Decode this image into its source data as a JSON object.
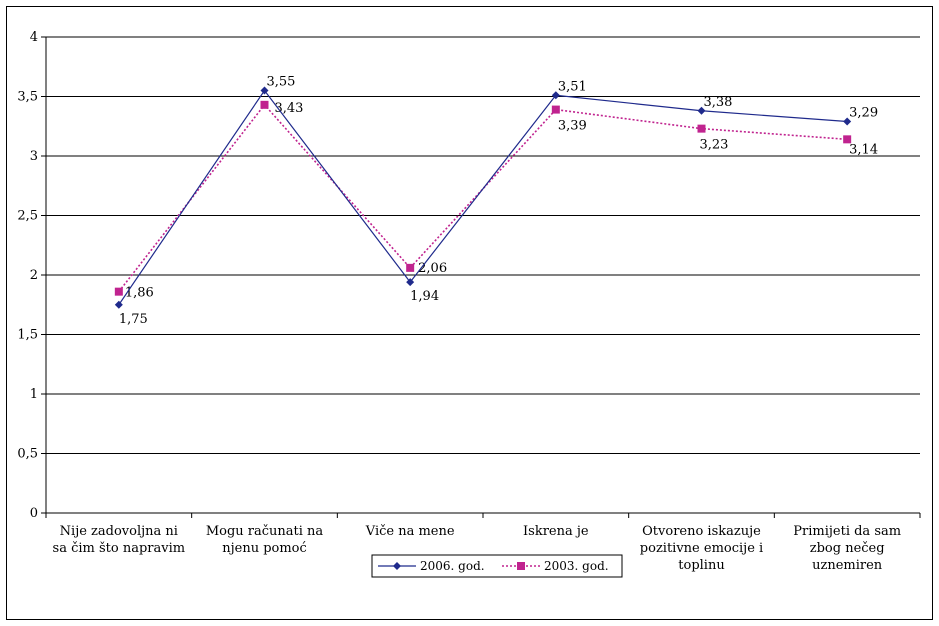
{
  "chart_data": {
    "type": "line",
    "categories": [
      [
        "Nije zadovoljna ni",
        "sa čim što napravim"
      ],
      [
        "Mogu računati na",
        "njenu pomoć"
      ],
      [
        "Viče na mene"
      ],
      [
        "Iskrena je"
      ],
      [
        "Otvoreno iskazuje",
        "pozitivne emocije i",
        "toplinu"
      ],
      [
        "Primijeti da sam",
        "zbog nečeg",
        "uznemiren"
      ]
    ],
    "series": [
      {
        "name": "2006. god.",
        "values": [
          1.75,
          3.55,
          1.94,
          3.51,
          3.38,
          3.29
        ],
        "labels": [
          "1,75",
          "3,55",
          "1,94",
          "3,51",
          "3,38",
          "3,29"
        ],
        "color": "#1f2a8c",
        "marker": "diamond",
        "line": "solid"
      },
      {
        "name": "2003. god.",
        "values": [
          1.86,
          3.43,
          2.06,
          3.39,
          3.23,
          3.14
        ],
        "labels": [
          "1,86",
          "3,43",
          "2,06",
          "3,39",
          "3,23",
          "3,14"
        ],
        "color": "#c0238f",
        "marker": "square",
        "line": "dotted"
      }
    ],
    "ylim": [
      0,
      4
    ],
    "yticks": [
      "0",
      "0,5",
      "1",
      "1,5",
      "2",
      "2,5",
      "3",
      "3,5",
      "4"
    ],
    "grid": true,
    "legend_position": "bottom-center",
    "title": "",
    "xlabel": "",
    "ylabel": ""
  }
}
